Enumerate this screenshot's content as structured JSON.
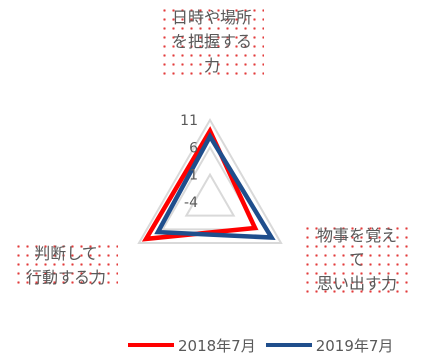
{
  "chart_data": {
    "type": "radar",
    "axes": [
      "日時や場所\nを把握する\n力",
      "物事を覚え\nて\n思い出す力",
      "判断して\n行動する力"
    ],
    "range": [
      -4,
      11
    ],
    "ticks": [
      -4,
      1,
      6,
      11
    ],
    "series": [
      {
        "name": "2018年7月",
        "color": "#ff0000",
        "values": [
          9,
          5.5,
          9.5
        ]
      },
      {
        "name": "2019年7月",
        "color": "#1f4e8c",
        "values": [
          8,
          9,
          7
        ]
      }
    ],
    "grid": true,
    "legend": "bottom"
  }
}
